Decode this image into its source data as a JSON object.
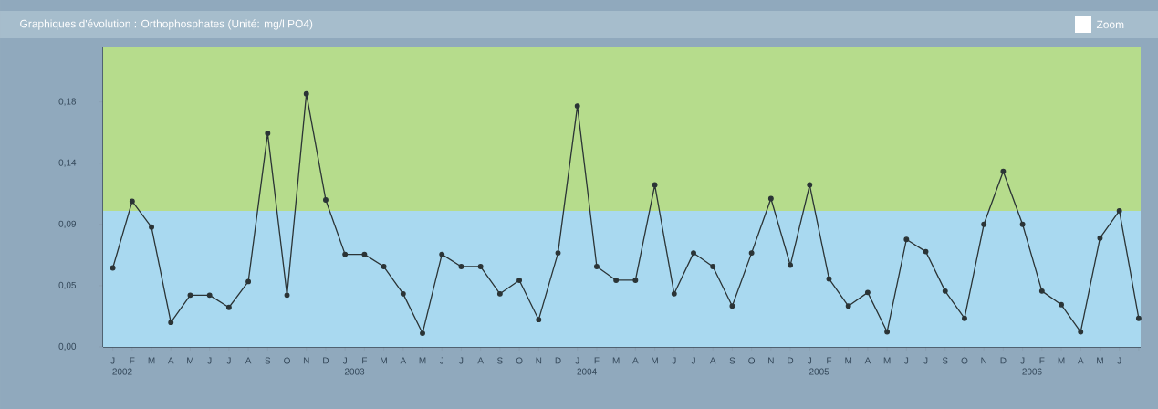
{
  "chart_data": {
    "type": "line",
    "title": "Graphiques d'évolution : Orthophosphates (Unité: mg/l PO4)",
    "categories": [
      "J",
      "F",
      "M",
      "A",
      "M",
      "J",
      "J",
      "A",
      "S",
      "O",
      "N",
      "D",
      "J",
      "F",
      "M",
      "A",
      "M",
      "J",
      "J",
      "A",
      "S",
      "O",
      "N",
      "D",
      "J",
      "F",
      "M",
      "A",
      "M",
      "J",
      "J",
      "A",
      "S",
      "O",
      "N",
      "D",
      "J",
      "F",
      "M",
      "A",
      "M",
      "J",
      "J",
      "S",
      "O",
      "N",
      "D",
      "J",
      "F",
      "M",
      "A",
      "M",
      "J",
      null
    ],
    "values": [
      0.058,
      0.107,
      0.088,
      0.018,
      0.038,
      0.038,
      0.029,
      0.048,
      0.157,
      0.038,
      0.186,
      0.108,
      0.068,
      0.068,
      0.059,
      0.039,
      0.01,
      0.068,
      0.059,
      0.059,
      0.039,
      0.049,
      0.02,
      0.069,
      0.177,
      0.059,
      0.049,
      0.049,
      0.119,
      0.039,
      0.069,
      0.059,
      0.03,
      0.069,
      0.109,
      0.06,
      0.119,
      0.05,
      0.03,
      0.04,
      0.011,
      0.079,
      0.07,
      0.041,
      0.021,
      0.09,
      0.129,
      0.09,
      0.041,
      0.031,
      0.011,
      0.08,
      0.1,
      0.021
    ],
    "color": "#2b3436",
    "marker": "circle",
    "ylim": [
      0,
      0.22
    ],
    "yticks": [
      {
        "value": 0,
        "label": "0,00"
      },
      {
        "value": 0.045,
        "label": "0,05"
      },
      {
        "value": 0.09,
        "label": "0,09"
      },
      {
        "value": 0.135,
        "label": "0,14"
      },
      {
        "value": 0.18,
        "label": "0,18"
      }
    ],
    "bands": [
      {
        "axis": "y",
        "from": 0,
        "to": 0.1,
        "color": "#a9d9f0"
      },
      {
        "axis": "y",
        "from": 0.1,
        "to": 0.22,
        "color": "#b6dc8c"
      }
    ],
    "annotations": [
      "Zoom",
      "2002",
      "2003",
      "2004",
      "2005",
      "2006"
    ]
  }
}
